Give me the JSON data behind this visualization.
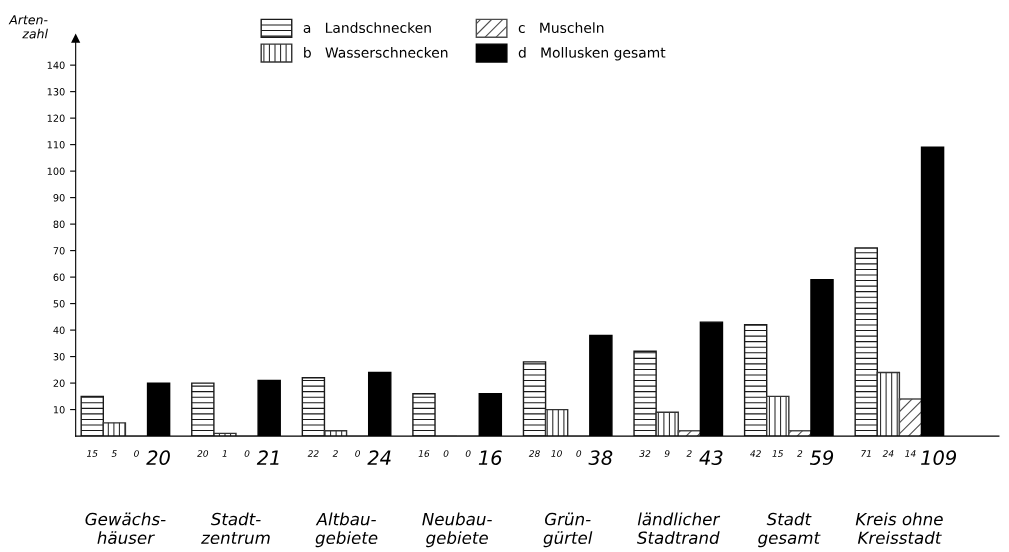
{
  "chart_data": {
    "type": "bar",
    "ylabel": "Arten-\nzahl",
    "categories": [
      "Gewächs-\nhäuser",
      "Stadt-\nzentrum",
      "Altbau-\ngebiete",
      "Neubau-\ngebiete",
      "Grün-\ngürtel",
      "ländlicher\nStadtrand",
      "Stadt\ngesamt",
      "Kreis ohne\nKreisstadt"
    ],
    "series": [
      {
        "name": "a   Landschnecken",
        "color": "#1a1a1a",
        "values": [
          15,
          20,
          22,
          16,
          28,
          32,
          42,
          71
        ]
      },
      {
        "name": "b   Wasserschnecken",
        "color": "#333333",
        "values": [
          5,
          1,
          2,
          0,
          10,
          9,
          15,
          24
        ]
      },
      {
        "name": "c   Muscheln",
        "color": "#4d4d4d",
        "values": [
          0,
          0,
          0,
          0,
          0,
          2,
          2,
          14
        ]
      },
      {
        "name": "d   Mollusken gesamt",
        "color": "#000000",
        "values": [
          20,
          21,
          24,
          16,
          38,
          43,
          59,
          109
        ]
      }
    ],
    "ylim": [
      0,
      150
    ],
    "yticks": [
      10,
      20,
      30,
      40,
      50,
      60,
      70,
      80,
      90,
      100,
      110,
      120,
      130,
      140
    ],
    "data_labels": true,
    "grid": false,
    "legend": "top"
  }
}
